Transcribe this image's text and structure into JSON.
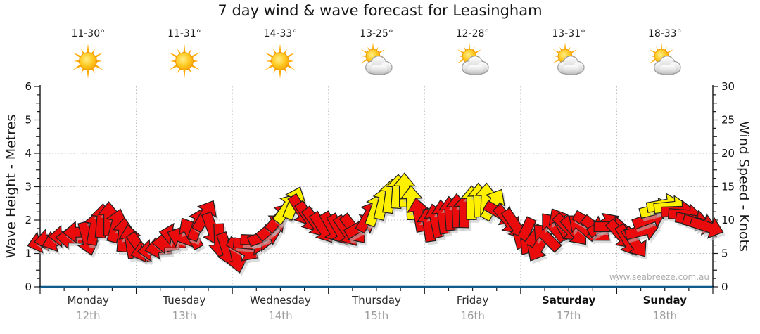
{
  "title": "7 day wind & wave forecast for Leasingham",
  "watermark": "www.seabreeze.com.au",
  "axes": {
    "left_label": "Wave Height - Metres",
    "right_label": "Wind Speed - Knots"
  },
  "days": [
    {
      "name": "Monday",
      "date": "12th",
      "temp": "11-30°",
      "icon": "sunny",
      "bold": false
    },
    {
      "name": "Tuesday",
      "date": "13th",
      "temp": "11-31°",
      "icon": "sunny",
      "bold": false
    },
    {
      "name": "Wednesday",
      "date": "14th",
      "temp": "14-33°",
      "icon": "sunny",
      "bold": false
    },
    {
      "name": "Thursday",
      "date": "15th",
      "temp": "13-25°",
      "icon": "partly-cloudy",
      "bold": false
    },
    {
      "name": "Friday",
      "date": "16th",
      "temp": "12-28°",
      "icon": "partly-cloudy",
      "bold": false
    },
    {
      "name": "Saturday",
      "date": "17th",
      "temp": "13-31°",
      "icon": "partly-cloudy",
      "bold": true
    },
    {
      "name": "Sunday",
      "date": "18th",
      "temp": "18-33°",
      "icon": "partly-cloudy",
      "bold": true
    }
  ],
  "chart_data": {
    "type": "wind-arrow-series",
    "title": "7 day wind & wave forecast for Leasingham",
    "x_categories": [
      "Monday 12th",
      "Tuesday 13th",
      "Wednesday 14th",
      "Thursday 15th",
      "Friday 16th",
      "Saturday 17th",
      "Sunday 18th"
    ],
    "wave_axis": {
      "label": "Wave Height - Metres",
      "min": 0,
      "max": 6,
      "major_ticks": [
        0,
        1,
        2,
        3,
        4,
        5,
        6
      ],
      "gridlines": [
        1,
        2,
        3,
        4,
        5
      ]
    },
    "wind_axis": {
      "label": "Wind Speed - Knots",
      "min": 0,
      "max": 30,
      "major_ticks": [
        0,
        5,
        10,
        15,
        20,
        25,
        30
      ]
    },
    "grid": {
      "horizontal_dotted": true,
      "vertical_dotted_at_day_boundaries": true
    },
    "colors": {
      "light_wind_arrow": "#ea0c0c",
      "strong_wind_arrow": "#fff000",
      "arrow_outline": "#1f1f1f",
      "x_axis_line": "#0d5c8c",
      "gridline": "#b9b9b9"
    },
    "strong_threshold_knots": 11.5,
    "arrow_convention": "each arrow = [fraction_of_day, wind_speed_knots, direction_deg_clockwise_0_is_up]",
    "series": [
      {
        "day": "Monday",
        "arrows": [
          [
            0.04,
            6.8,
            255
          ],
          [
            0.115,
            7.1,
            262
          ],
          [
            0.19,
            7.0,
            250
          ],
          [
            0.265,
            7.6,
            268
          ],
          [
            0.34,
            7.3,
            272
          ],
          [
            0.415,
            8.2,
            268
          ],
          [
            0.49,
            7.2,
            165
          ],
          [
            0.565,
            8.8,
            10
          ],
          [
            0.64,
            9.9,
            5
          ],
          [
            0.715,
            10.2,
            0
          ],
          [
            0.79,
            9.2,
            15
          ],
          [
            0.865,
            7.8,
            5
          ],
          [
            0.94,
            6.8,
            350
          ]
        ]
      },
      {
        "day": "Tuesday",
        "arrows": [
          [
            0.04,
            5.8,
            145
          ],
          [
            0.115,
            5.4,
            255
          ],
          [
            0.19,
            5.5,
            265
          ],
          [
            0.265,
            5.9,
            260
          ],
          [
            0.34,
            6.6,
            270
          ],
          [
            0.415,
            7.8,
            280
          ],
          [
            0.49,
            7.3,
            290
          ],
          [
            0.565,
            8.1,
            330
          ],
          [
            0.64,
            9.4,
            20
          ],
          [
            0.715,
            10.7,
            30
          ],
          [
            0.79,
            8.6,
            160
          ],
          [
            0.865,
            6.9,
            178
          ],
          [
            0.94,
            5.6,
            162
          ]
        ]
      },
      {
        "day": "Wednesday",
        "arrows": [
          [
            0.04,
            4.6,
            168
          ],
          [
            0.115,
            5.6,
            120
          ],
          [
            0.19,
            6.4,
            95
          ],
          [
            0.265,
            7.0,
            92
          ],
          [
            0.34,
            7.6,
            70
          ],
          [
            0.415,
            9.0,
            50
          ],
          [
            0.49,
            10.4,
            40
          ],
          [
            0.565,
            11.8,
            35
          ],
          [
            0.64,
            12.6,
            22
          ],
          [
            0.715,
            11.4,
            148
          ],
          [
            0.79,
            10.4,
            146
          ],
          [
            0.865,
            9.6,
            144
          ],
          [
            0.94,
            8.8,
            147
          ]
        ]
      },
      {
        "day": "Thursday",
        "arrows": [
          [
            0.04,
            8.8,
            150
          ],
          [
            0.115,
            8.5,
            150
          ],
          [
            0.19,
            8.3,
            146
          ],
          [
            0.265,
            8.6,
            142
          ],
          [
            0.34,
            9.1,
            60
          ],
          [
            0.415,
            10.6,
            30
          ],
          [
            0.49,
            11.6,
            20
          ],
          [
            0.565,
            12.6,
            14
          ],
          [
            0.64,
            13.6,
            8
          ],
          [
            0.715,
            14.3,
            4
          ],
          [
            0.79,
            14.5,
            0
          ],
          [
            0.865,
            12.6,
            358
          ],
          [
            0.94,
            10.8,
            350
          ]
        ]
      },
      {
        "day": "Friday",
        "arrows": [
          [
            0.04,
            9.3,
            352
          ],
          [
            0.115,
            9.9,
            348
          ],
          [
            0.19,
            10.5,
            352
          ],
          [
            0.265,
            11.0,
            356
          ],
          [
            0.34,
            11.4,
            358
          ],
          [
            0.415,
            11.4,
            2
          ],
          [
            0.49,
            12.6,
            0
          ],
          [
            0.565,
            13.0,
            358
          ],
          [
            0.64,
            13.0,
            2
          ],
          [
            0.715,
            12.4,
            30
          ],
          [
            0.79,
            11.0,
            120
          ],
          [
            0.865,
            10.0,
            140
          ],
          [
            0.94,
            9.3,
            146
          ]
        ]
      },
      {
        "day": "Saturday",
        "arrows": [
          [
            0.04,
            7.9,
            205
          ],
          [
            0.115,
            6.9,
            215
          ],
          [
            0.19,
            6.1,
            210
          ],
          [
            0.265,
            7.5,
            315
          ],
          [
            0.34,
            9.0,
            320
          ],
          [
            0.415,
            9.5,
            330
          ],
          [
            0.49,
            8.8,
            135
          ],
          [
            0.565,
            8.3,
            140
          ],
          [
            0.64,
            9.0,
            310
          ],
          [
            0.715,
            9.5,
            120
          ],
          [
            0.79,
            8.6,
            130
          ],
          [
            0.865,
            9.3,
            60
          ],
          [
            0.94,
            9.0,
            90
          ]
        ]
      },
      {
        "day": "Sunday",
        "arrows": [
          [
            0.04,
            7.8,
            138
          ],
          [
            0.115,
            6.9,
            150
          ],
          [
            0.19,
            6.6,
            144
          ],
          [
            0.265,
            8.4,
            76
          ],
          [
            0.34,
            10.2,
            70
          ],
          [
            0.415,
            11.6,
            76
          ],
          [
            0.49,
            12.3,
            80
          ],
          [
            0.565,
            12.0,
            84
          ],
          [
            0.64,
            11.3,
            88
          ],
          [
            0.715,
            10.8,
            94
          ],
          [
            0.79,
            10.0,
            100
          ],
          [
            0.865,
            9.5,
            104
          ],
          [
            0.94,
            9.0,
            108
          ]
        ]
      }
    ]
  }
}
